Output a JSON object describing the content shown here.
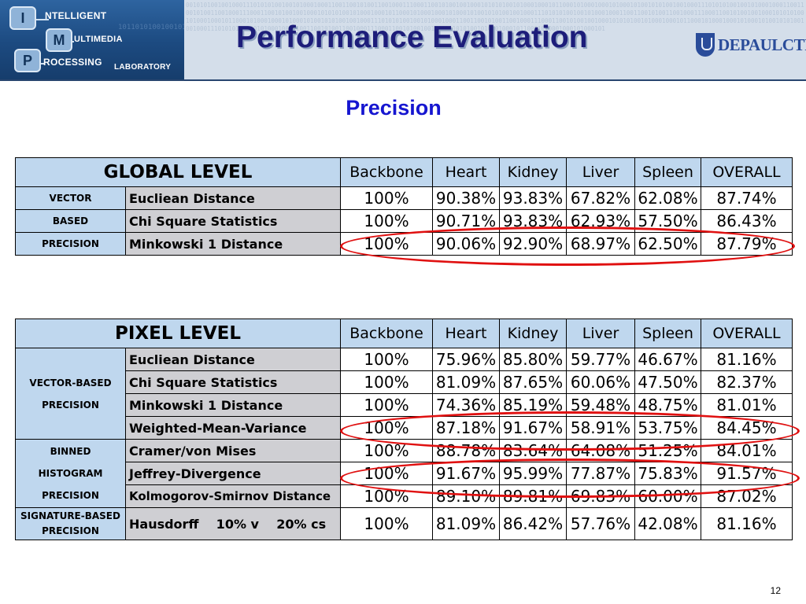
{
  "header": {
    "title": "Performance Evaluation",
    "logo": {
      "letter_i": "I",
      "word_i": "NTELLIGENT",
      "letter_m": "M",
      "word_m": "ULTIMEDIA",
      "letter_p": "P",
      "word_p": "ROCESSING",
      "word_lab": "LABORATORY"
    },
    "brand": "DEPAULCTI",
    "binary_pattern": "0010101001001000111010101001001010001000110011001010011001000111000110010100100100010101010010100010001011000101000100010100010100101010010010001110101010010010100010001100110010100110010001110001100101001001000101010100101000100010110001010001000101000101001010100100100011101010100100101000100011001100101001100100011100011001010010010001010101001010001000101100010100010001010001010010101001001000111010101001001010001000110011001010011001000111000110010100100100010101010010100010001011000101000100010100010100101010010010001110101010010010100010001100110010100110010001110001100101001001000101010100101000100010110001010001000101000101",
    "logo_digits": "10110101001001010110100101001110100101001010101001010010101"
  },
  "subtitle": "Precision",
  "colors": {
    "header_bg": "#d4deea",
    "title": "#1d1d7a",
    "subtitle": "#1616d0",
    "cell_header": "#bfd7ee",
    "method": "#cfcfd3",
    "highlight": "#e01010"
  },
  "global_table": {
    "level": "GLOBAL LEVEL",
    "columns": [
      "Backbone",
      "Heart",
      "Kidney",
      "Liver",
      "Spleen",
      "OVERALL"
    ],
    "group": [
      "VECTOR",
      "BASED",
      "PRECISION"
    ],
    "rows": [
      {
        "method": "Eucliean Distance",
        "values": [
          "100%",
          "90.38%",
          "93.83%",
          "67.82%",
          "62.08%",
          "87.74%"
        ]
      },
      {
        "method": "Chi Square Statistics",
        "values": [
          "100%",
          "90.71%",
          "93.83%",
          "62.93%",
          "57.50%",
          "86.43%"
        ]
      },
      {
        "method": "Minkowski 1 Distance",
        "values": [
          "100%",
          "90.06%",
          "92.90%",
          "68.97%",
          "62.50%",
          "87.79%"
        ]
      }
    ]
  },
  "pixel_table": {
    "level": "PIXEL LEVEL",
    "columns": [
      "Backbone",
      "Heart",
      "Kidney",
      "Liver",
      "Spleen",
      "OVERALL"
    ],
    "groups": [
      {
        "label": [
          "VECTOR-BASED",
          "PRECISION"
        ]
      },
      {
        "label": [
          "BINNED",
          "HISTOGRAM",
          "PRECISION"
        ]
      },
      {
        "label": [
          "SIGNATURE-BASED",
          "PRECISION"
        ]
      }
    ],
    "rows": [
      {
        "method": "Eucliean Distance",
        "values": [
          "100%",
          "75.96%",
          "85.80%",
          "59.77%",
          "46.67%",
          "81.16%"
        ]
      },
      {
        "method": "Chi Square Statistics",
        "values": [
          "100%",
          "81.09%",
          "87.65%",
          "60.06%",
          "47.50%",
          "82.37%"
        ]
      },
      {
        "method": "Minkowski 1 Distance",
        "values": [
          "100%",
          "74.36%",
          "85.19%",
          "59.48%",
          "48.75%",
          "81.01%"
        ]
      },
      {
        "method": "Weighted-Mean-Variance",
        "values": [
          "100%",
          "87.18%",
          "91.67%",
          "58.91%",
          "53.75%",
          "84.45%"
        ]
      },
      {
        "method": "Cramer/von Mises",
        "values": [
          "100%",
          "88.78%",
          "83.64%",
          "64.08%",
          "51.25%",
          "84.01%"
        ]
      },
      {
        "method": "Jeffrey-Divergence",
        "values": [
          "100%",
          "91.67%",
          "95.99%",
          "77.87%",
          "75.83%",
          "91.57%"
        ]
      },
      {
        "method": "Kolmogorov-Smirnov Distance",
        "values": [
          "100%",
          "89.10%",
          "89.81%",
          "69.83%",
          "60.00%",
          "87.02%"
        ]
      },
      {
        "method": "Hausdorff    10% v    20% cs",
        "values": [
          "100%",
          "81.09%",
          "86.42%",
          "57.76%",
          "42.08%",
          "81.16%"
        ]
      }
    ]
  },
  "page_number": "12"
}
